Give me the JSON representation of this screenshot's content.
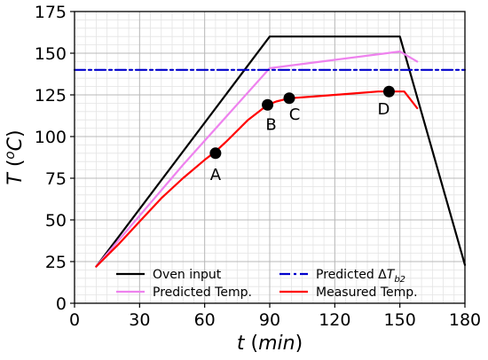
{
  "chart_data": {
    "type": "line",
    "xlim": [
      0,
      180
    ],
    "ylim": [
      0,
      175
    ],
    "x_ticks": [
      0,
      30,
      60,
      90,
      120,
      150,
      180
    ],
    "y_ticks": [
      0,
      25,
      50,
      75,
      100,
      125,
      150,
      175
    ],
    "x_minor_step": 5,
    "y_minor_step": 5,
    "grid": true,
    "xlabel": {
      "var": "t",
      "unit": "min"
    },
    "ylabel": {
      "var": "T",
      "unit": "°C"
    },
    "legend_position": "bottom",
    "series": [
      {
        "name": "Oven input",
        "color": "#000000",
        "style": "solid",
        "points": [
          [
            10,
            22
          ],
          [
            90,
            160
          ],
          [
            150,
            160
          ],
          [
            180,
            23
          ]
        ]
      },
      {
        "name": "Predicted Temp.",
        "color": "#ee82ee",
        "style": "solid",
        "points": [
          [
            10,
            22
          ],
          [
            50,
            83
          ],
          [
            90,
            141
          ],
          [
            120,
            146
          ],
          [
            150,
            151
          ],
          [
            158,
            145
          ]
        ]
      },
      {
        "name": "Predicted ΔT_b2",
        "color": "#0000cc",
        "style": "dashdot",
        "points": [
          [
            0,
            140
          ],
          [
            180,
            140
          ]
        ]
      },
      {
        "name": "Measured Temp.",
        "color": "#ff0000",
        "style": "solid",
        "points": [
          [
            10,
            22
          ],
          [
            20,
            35
          ],
          [
            30,
            49
          ],
          [
            40,
            63
          ],
          [
            50,
            75
          ],
          [
            60,
            86
          ],
          [
            65,
            91
          ],
          [
            70,
            97
          ],
          [
            80,
            110
          ],
          [
            89,
            119
          ],
          [
            93,
            121
          ],
          [
            99,
            123
          ],
          [
            110,
            124
          ],
          [
            120,
            125
          ],
          [
            130,
            126
          ],
          [
            140,
            127
          ],
          [
            145,
            127
          ],
          [
            150,
            127
          ],
          [
            152,
            127
          ],
          [
            155,
            122
          ],
          [
            158,
            117
          ]
        ]
      }
    ],
    "annotations": [
      {
        "label": "A",
        "x": 65,
        "y": 90
      },
      {
        "label": "B",
        "x": 89,
        "y": 119
      },
      {
        "label": "C",
        "x": 99,
        "y": 123
      },
      {
        "label": "D",
        "x": 145,
        "y": 127
      }
    ],
    "legend": [
      {
        "label": "Oven input",
        "series": 0
      },
      {
        "label": "Predicted ΔT",
        "sub": "b2",
        "series": 2
      },
      {
        "label": "Predicted Temp.",
        "series": 1
      },
      {
        "label": "Measured Temp.",
        "series": 3
      }
    ]
  }
}
